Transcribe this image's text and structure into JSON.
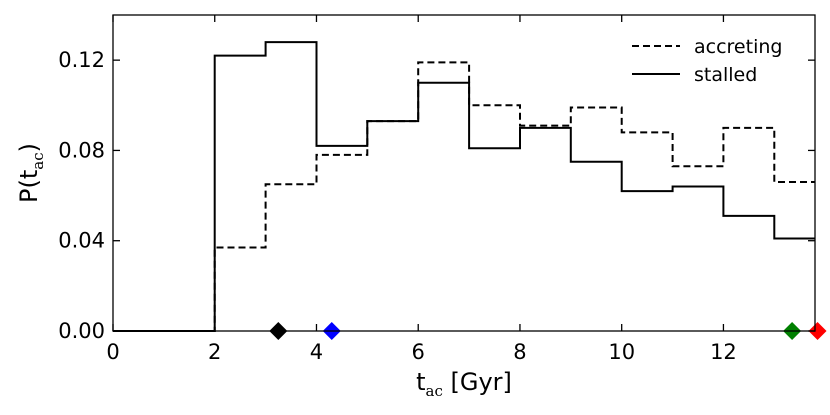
{
  "chart_data": {
    "type": "line",
    "step": true,
    "x_edges": [
      0,
      1,
      2,
      3,
      4,
      5,
      6,
      7,
      8,
      9,
      10,
      11,
      12,
      13,
      14
    ],
    "series": [
      {
        "name": "accreting",
        "style": "dashed",
        "color": "#000000",
        "values": [
          0,
          0,
          0.037,
          0.065,
          0.078,
          0.093,
          0.119,
          0.1,
          0.091,
          0.099,
          0.088,
          0.073,
          0.09,
          0.066
        ]
      },
      {
        "name": "stalled",
        "style": "solid",
        "color": "#000000",
        "values": [
          0,
          0,
          0.122,
          0.128,
          0.082,
          0.093,
          0.11,
          0.081,
          0.09,
          0.075,
          0.062,
          0.064,
          0.051,
          0.041
        ]
      }
    ],
    "markers": [
      {
        "x": 3.25,
        "y": 0,
        "shape": "diamond",
        "color": "#000000"
      },
      {
        "x": 4.3,
        "y": 0,
        "shape": "diamond",
        "color": "#0000ff"
      },
      {
        "x": 13.35,
        "y": 0,
        "shape": "diamond",
        "color": "#008000"
      },
      {
        "x": 13.85,
        "y": 0,
        "shape": "diamond",
        "color": "#ff0000"
      }
    ],
    "xlabel": {
      "main": "t",
      "sub": "ac",
      "unit": " [Gyr]"
    },
    "ylabel": {
      "main": "P(t",
      "sub": "ac",
      "close": ")"
    },
    "xlim": [
      0,
      13.8
    ],
    "ylim": [
      0,
      0.14
    ],
    "xticks": [
      0,
      2,
      4,
      6,
      8,
      10,
      12
    ],
    "xtick_labels": [
      "0",
      "2",
      "4",
      "6",
      "8",
      "10",
      "12"
    ],
    "yticks": [
      0,
      0.04,
      0.08,
      0.12
    ],
    "ytick_labels": [
      "0.00",
      "0.04",
      "0.08",
      "0.12"
    ],
    "legend_position": "top-right",
    "grid": false
  }
}
